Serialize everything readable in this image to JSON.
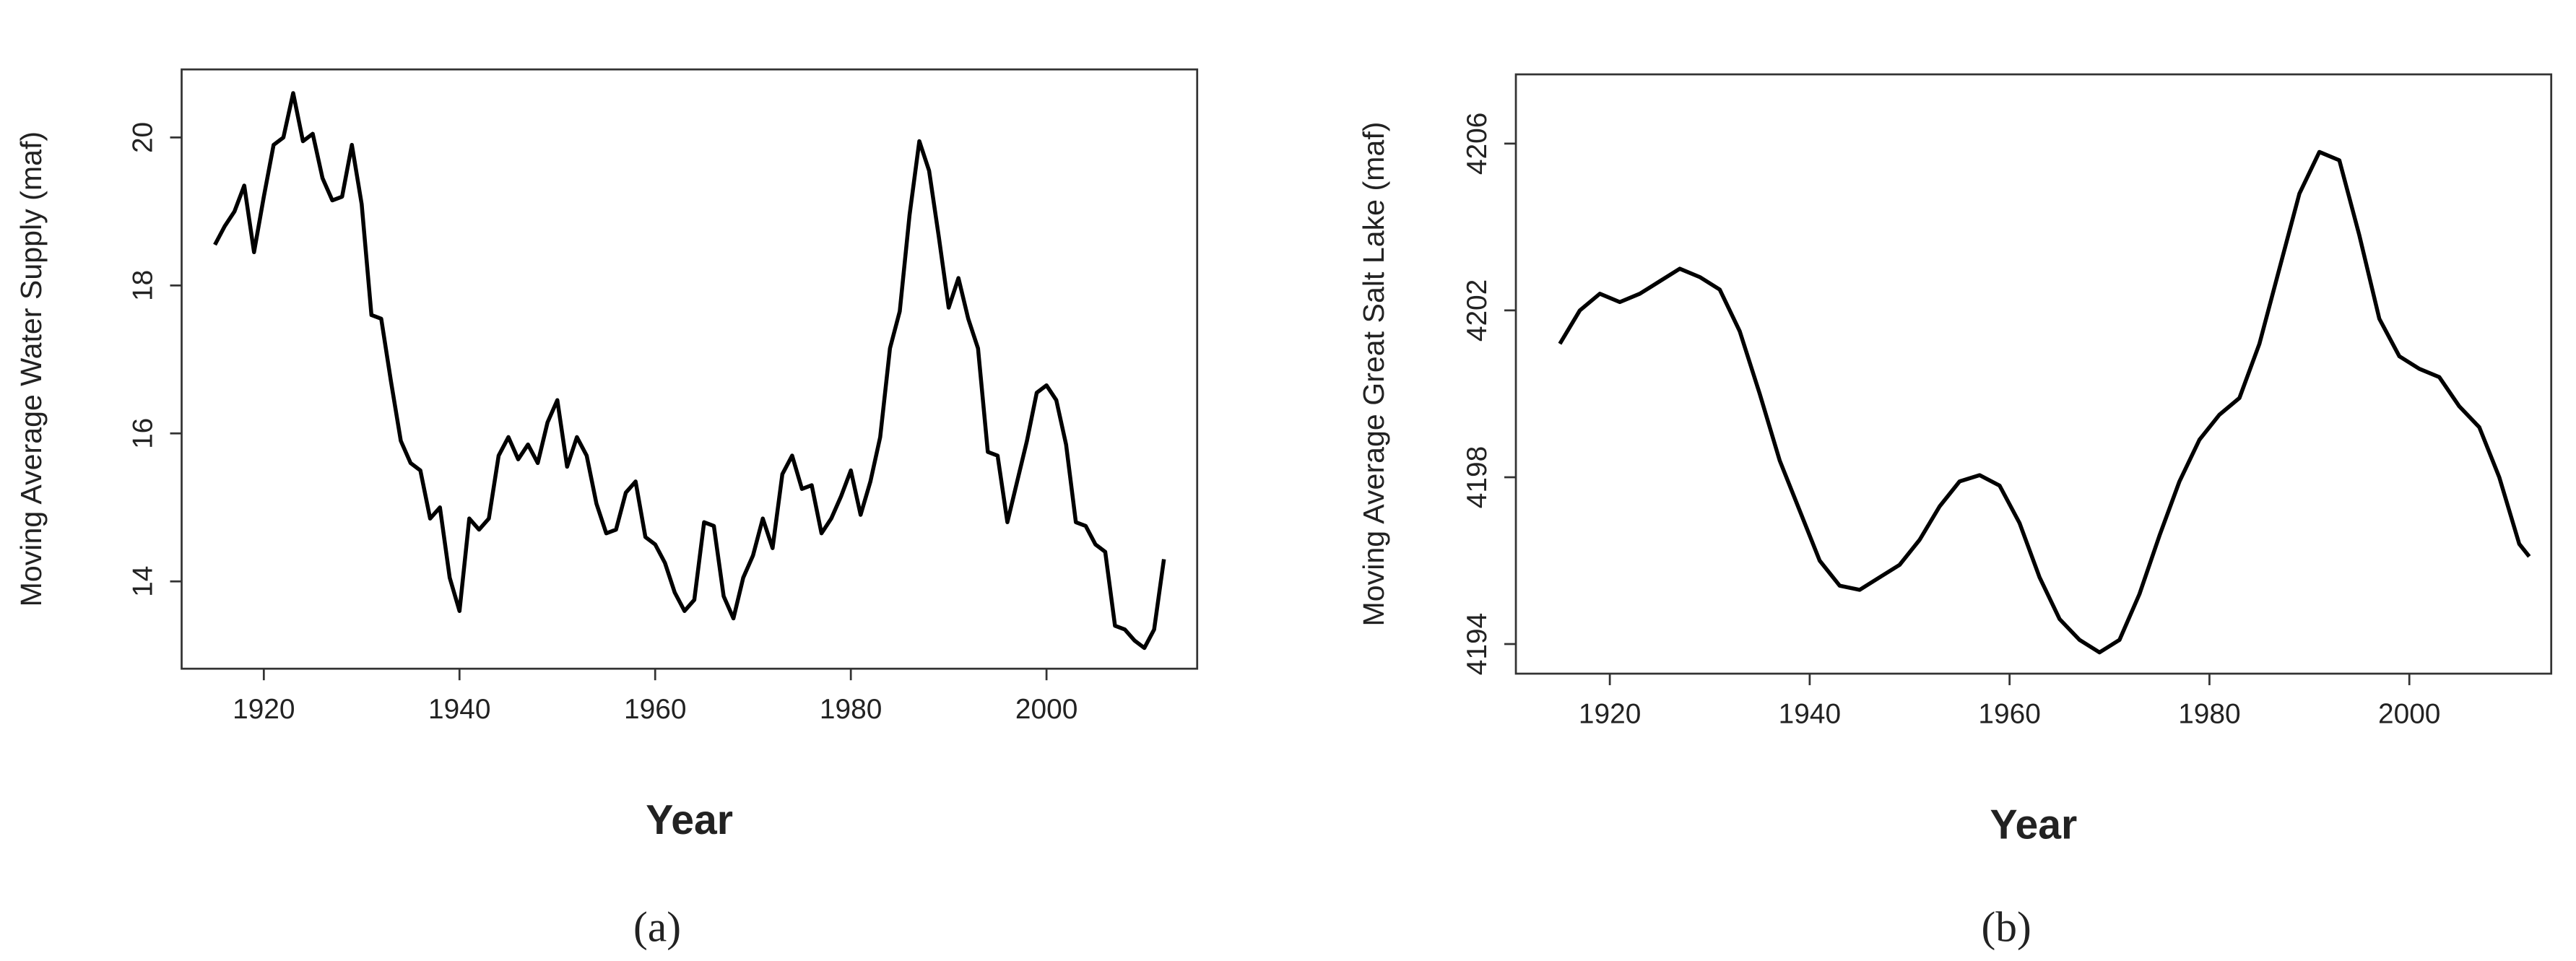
{
  "chart_data": [
    {
      "type": "line",
      "panel_label": "(a)",
      "xlabel": "Year",
      "ylabel": "Moving Average Water Supply (maf)",
      "color": "#000000",
      "x": [
        1915,
        1916,
        1917,
        1918,
        1919,
        1920,
        1921,
        1922,
        1923,
        1924,
        1925,
        1926,
        1927,
        1928,
        1929,
        1930,
        1931,
        1932,
        1933,
        1934,
        1935,
        1936,
        1937,
        1938,
        1939,
        1940,
        1941,
        1942,
        1943,
        1944,
        1945,
        1946,
        1947,
        1948,
        1949,
        1950,
        1951,
        1952,
        1953,
        1954,
        1955,
        1956,
        1957,
        1958,
        1959,
        1960,
        1961,
        1962,
        1963,
        1964,
        1965,
        1966,
        1967,
        1968,
        1969,
        1970,
        1971,
        1972,
        1973,
        1974,
        1975,
        1976,
        1977,
        1978,
        1979,
        1980,
        1981,
        1982,
        1983,
        1984,
        1985,
        1986,
        1987,
        1988,
        1989,
        1990,
        1991,
        1992,
        1993,
        1994,
        1995,
        1996,
        1997,
        1998,
        1999,
        2000,
        2001,
        2002,
        2003,
        2004,
        2005,
        2006,
        2007,
        2008,
        2009,
        2010,
        2011,
        2012
      ],
      "values": [
        18.55,
        18.8,
        19.0,
        19.35,
        18.45,
        19.2,
        19.9,
        20.0,
        20.6,
        19.95,
        20.05,
        19.45,
        19.15,
        19.2,
        19.9,
        19.1,
        17.6,
        17.55,
        16.7,
        15.9,
        15.6,
        15.5,
        14.85,
        15.0,
        14.05,
        13.6,
        14.85,
        14.7,
        14.85,
        15.7,
        15.95,
        15.65,
        15.85,
        15.6,
        16.15,
        16.45,
        15.55,
        15.95,
        15.7,
        15.05,
        14.65,
        14.7,
        15.2,
        15.35,
        14.6,
        14.5,
        14.25,
        13.85,
        13.6,
        13.75,
        14.8,
        14.75,
        13.8,
        13.5,
        14.05,
        14.35,
        14.85,
        14.45,
        15.45,
        15.7,
        15.25,
        15.3,
        14.65,
        14.85,
        15.15,
        15.5,
        14.9,
        15.35,
        15.95,
        17.15,
        17.65,
        18.95,
        19.95,
        19.55,
        18.65,
        17.7,
        18.1,
        17.55,
        17.15,
        15.75,
        15.7,
        14.8,
        15.35,
        15.9,
        16.55,
        16.65,
        16.45,
        15.85,
        14.8,
        14.75,
        14.5,
        14.4,
        13.4,
        13.35,
        13.2,
        13.1,
        13.35,
        14.3
      ],
      "xlim": [
        1911.6,
        2015.4
      ],
      "xticks": [
        1920,
        1940,
        1960,
        1980,
        2000
      ],
      "ylim": [
        12.82,
        20.92
      ],
      "yticks": [
        14,
        16,
        18,
        20
      ]
    },
    {
      "type": "line",
      "panel_label": "(b)",
      "xlabel": "Year",
      "ylabel": "Moving Average Great Salt Lake (maf)",
      "color": "#000000",
      "x": [
        1915,
        1917,
        1919,
        1921,
        1923,
        1925,
        1927,
        1929,
        1931,
        1933,
        1935,
        1937,
        1939,
        1941,
        1943,
        1945,
        1947,
        1949,
        1951,
        1953,
        1955,
        1957,
        1959,
        1961,
        1963,
        1965,
        1967,
        1969,
        1971,
        1973,
        1975,
        1977,
        1979,
        1981,
        1983,
        1985,
        1987,
        1989,
        1991,
        1993,
        1995,
        1997,
        1999,
        2001,
        2003,
        2005,
        2007,
        2009,
        2011,
        2012
      ],
      "values": [
        4201.2,
        4202.0,
        4202.4,
        4202.2,
        4202.4,
        4202.7,
        4203.0,
        4202.8,
        4202.5,
        4201.5,
        4200.0,
        4198.4,
        4197.2,
        4196.0,
        4195.4,
        4195.3,
        4195.6,
        4195.9,
        4196.5,
        4197.3,
        4197.9,
        4198.05,
        4197.8,
        4196.9,
        4195.6,
        4194.6,
        4194.1,
        4193.8,
        4194.1,
        4195.2,
        4196.6,
        4197.9,
        4198.9,
        4199.5,
        4199.9,
        4201.2,
        4203.0,
        4204.8,
        4205.8,
        4205.6,
        4203.8,
        4201.8,
        4200.9,
        4200.6,
        4200.4,
        4199.7,
        4199.2,
        4198.0,
        4196.4,
        4196.1
      ],
      "xlim": [
        1910.6,
        2014.2
      ],
      "xticks": [
        1920,
        1940,
        1960,
        1980,
        2000
      ],
      "ylim": [
        4193.29,
        4207.66
      ],
      "yticks": [
        4194,
        4198,
        4202,
        4206
      ]
    }
  ]
}
